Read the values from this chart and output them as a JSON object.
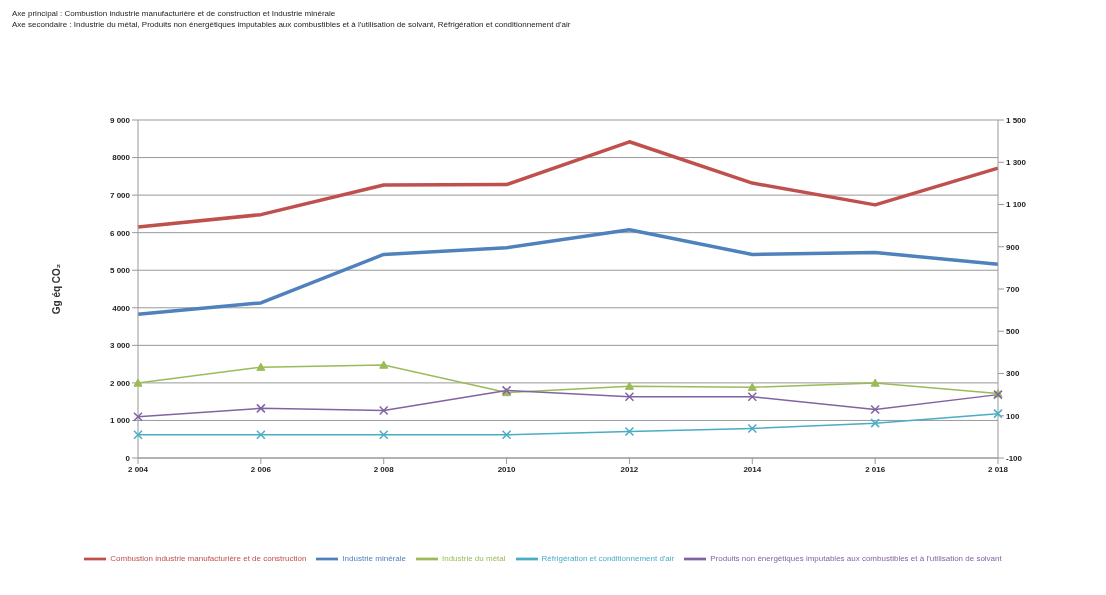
{
  "chart_data": {
    "type": "line",
    "annotations": [
      "Axe principal : Combustion industrie manufacturière et de construction et Industrie minérale",
      "Axe secondaire : Industrie du métal, Produits non énergétiques imputables aux combustibles et à l'utilisation de solvant,  Réfrigération et conditionnement d'air"
    ],
    "ylabel": "Gg éq CO₂",
    "categories": [
      "2 004",
      "2 006",
      "2 008",
      "2010",
      "2012",
      "2014",
      "2 016",
      "2 018"
    ],
    "series": [
      {
        "name": "Combustion industrie manufacturière et de construction",
        "color": "#c0504d",
        "marker": "none",
        "values": [
          6150,
          6480,
          7270,
          7280,
          8420,
          7320,
          6740,
          7720
        ]
      },
      {
        "name": "Industrie minérale",
        "color": "#4f81bd",
        "marker": "none",
        "values": [
          3830,
          4130,
          5420,
          5600,
          6080,
          5420,
          5470,
          5160
        ]
      },
      {
        "name": "Industrie du métal",
        "color": "#9bbb59",
        "marker": "triangle",
        "axis": "y2",
        "values": [
          255,
          330,
          340,
          210,
          240,
          235,
          255,
          205
        ]
      },
      {
        "name": "Réfrigération et conditionnement d'air",
        "color": "#4bacc6",
        "marker": "cross",
        "axis": "y2",
        "values": [
          10,
          10,
          10,
          10,
          25,
          40,
          65,
          110
        ]
      },
      {
        "name": "Produits non énergétiques imputables aux combustibles et à l'utilisation de solvant",
        "color": "#8064a2",
        "marker": "cross",
        "axis": "y2",
        "values": [
          95,
          135,
          125,
          220,
          190,
          190,
          130,
          200
        ]
      }
    ],
    "ylim": [
      0,
      9000
    ],
    "yticks": [
      {
        "value": 0,
        "label": "0"
      },
      {
        "value": 1000,
        "label": "1 000"
      },
      {
        "value": 2000,
        "label": "2 000"
      },
      {
        "value": 3000,
        "label": "3 000"
      },
      {
        "value": 4000,
        "label": "4000"
      },
      {
        "value": 5000,
        "label": "5 000"
      },
      {
        "value": 6000,
        "label": "6 000"
      },
      {
        "value": 7000,
        "label": "7 000"
      },
      {
        "value": 8000,
        "label": "8000"
      },
      {
        "value": 9000,
        "label": "9 000"
      }
    ],
    "y2lim": [
      -100,
      1500
    ],
    "y2ticks": [
      -100,
      100,
      300,
      500,
      700,
      900,
      {
        "value": 1100,
        "label": "1 100"
      },
      {
        "value": 1300,
        "label": "1 300"
      },
      {
        "value": 1500,
        "label": "1 500"
      }
    ],
    "grid": "y",
    "legend": "bottom",
    "line_style": "solid"
  }
}
